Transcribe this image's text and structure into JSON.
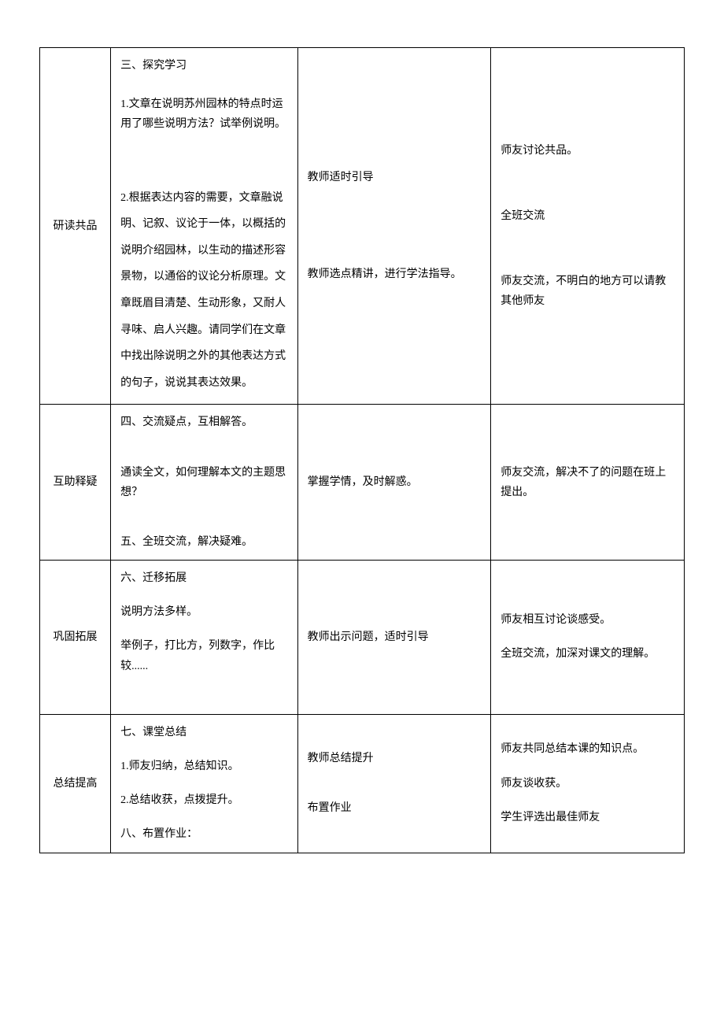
{
  "rows": [
    {
      "label": "研读共品",
      "content": [
        {
          "text": " 三、探究学习",
          "spaced": false,
          "gapAfter": true
        },
        {
          "text": "1.文章在说明苏州园林的特点时运用了哪些说明方法？试举例说明。",
          "spaced": false,
          "gapAfter": true
        },
        {
          "text": "",
          "vspace": true
        },
        {
          "text": "2.根据表达内容的需要，文章融说明、记叙、议论于一体，以概括的说明介绍园林，以生动的描述形容景物，以通俗的议论分析原理。文章既眉目清楚、生动形象，又耐人寻味、启人兴趣。请同学们在文章中找出除说明之外的其他表达方式的句子，说说其表达效果。",
          "spaced": true
        }
      ],
      "teacher": [
        {
          "text": "教师适时引导"
        },
        {
          "text": "",
          "vspace": true
        },
        {
          "text": "",
          "vspace": true
        },
        {
          "text": "教师选点精讲，进行学法指导。"
        }
      ],
      "student": [
        {
          "text": "师友讨论共品。"
        },
        {
          "text": "",
          "vspace": true
        },
        {
          "text": "全班交流"
        },
        {
          "text": "",
          "vspace": true
        },
        {
          "text": "师友交流，不明白的地方可以请教其他师友"
        }
      ]
    },
    {
      "label": "互助释疑",
      "content": [
        {
          "text": "四、交流疑点，互相解答。"
        },
        {
          "text": "",
          "vspace-sm": true
        },
        {
          "text": "通读全文，如何理解本文的主题思想？",
          "spaced": false
        },
        {
          "text": "",
          "vspace-sm": true
        },
        {
          "text": "五、全班交流，解决疑难。"
        }
      ],
      "teacher": [
        {
          "text": "掌握学情，及时解惑。"
        }
      ],
      "student": [
        {
          "text": "师友交流，解决不了的问题在班上提出。"
        }
      ]
    },
    {
      "label": "巩固拓展",
      "content": [
        {
          "text": "六、迁移拓展"
        },
        {
          "text": "说明方法多样。"
        },
        {
          "text": "举例子，打比方，列数字，作比较......",
          "spaced": false
        },
        {
          "text": "",
          "vspace-sm": true
        }
      ],
      "teacher": [
        {
          "text": "教师出示问题，适时引导"
        }
      ],
      "student": [
        {
          "text": "师友相互讨论谈感受。"
        },
        {
          "text": "全班交流，加深对课文的理解。"
        }
      ]
    },
    {
      "label": "总结提高",
      "content": [
        {
          "text": "七、课堂总结"
        },
        {
          "text": "1.师友归纳，总结知识。",
          "gapBefore": true
        },
        {
          "text": "2.总结收获，点拨提升。",
          "gapBefore": true
        },
        {
          "text": "八、布置作业：",
          "gapBefore": true
        }
      ],
      "teacher": [
        {
          "text": "教师总结提升"
        },
        {
          "text": "",
          "vspace-sm": true
        },
        {
          "text": "布置作业"
        }
      ],
      "student": [
        {
          "text": "师友共同总结本课的知识点。"
        },
        {
          "text": "师友谈收获。"
        },
        {
          "text": "学生评选出最佳师友",
          "gapBefore": true
        }
      ]
    }
  ]
}
